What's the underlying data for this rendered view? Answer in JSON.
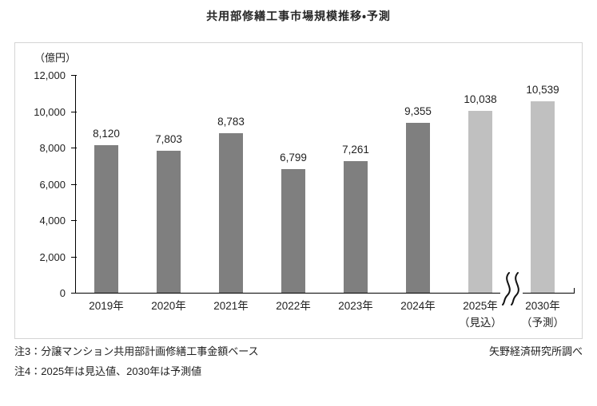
{
  "title": "共用部修繕工事市場規模推移・予測",
  "chart_data": {
    "type": "bar",
    "title": "共用部修繕工事市場規模推移・予測",
    "unit": "（億円）",
    "categories": [
      "2019年",
      "2020年",
      "2021年",
      "2022年",
      "2023年",
      "2024年",
      "2025年",
      "2030年"
    ],
    "category_sublabels": [
      "",
      "",
      "",
      "",
      "",
      "",
      "（見込）",
      "（予測）"
    ],
    "values": [
      8120,
      7803,
      8783,
      6799,
      7261,
      9355,
      10038,
      10539
    ],
    "value_labels": [
      "8,120",
      "7,803",
      "8,783",
      "6,799",
      "7,261",
      "9,355",
      "10,038",
      "10,539"
    ],
    "bar_styles": [
      "actual",
      "actual",
      "actual",
      "actual",
      "actual",
      "actual",
      "forecast",
      "forecast"
    ],
    "colors": {
      "actual": "#7f7f7f",
      "forecast": "#c0c0c0"
    },
    "ylim": [
      0,
      12000
    ],
    "ytick_step": 2000,
    "ytick_labels": [
      "0",
      "2,000",
      "4,000",
      "6,000",
      "8,000",
      "10,000",
      "12,000"
    ],
    "axis_break_between": [
      "2025年",
      "2030年"
    ],
    "grid": false,
    "legend": false
  },
  "notes": {
    "note3": "注3：分譲マンション共用部計画修繕工事金額ベース",
    "note4": "注4：2025年は見込値、2030年は予測値",
    "source": "矢野経済研究所調べ"
  }
}
